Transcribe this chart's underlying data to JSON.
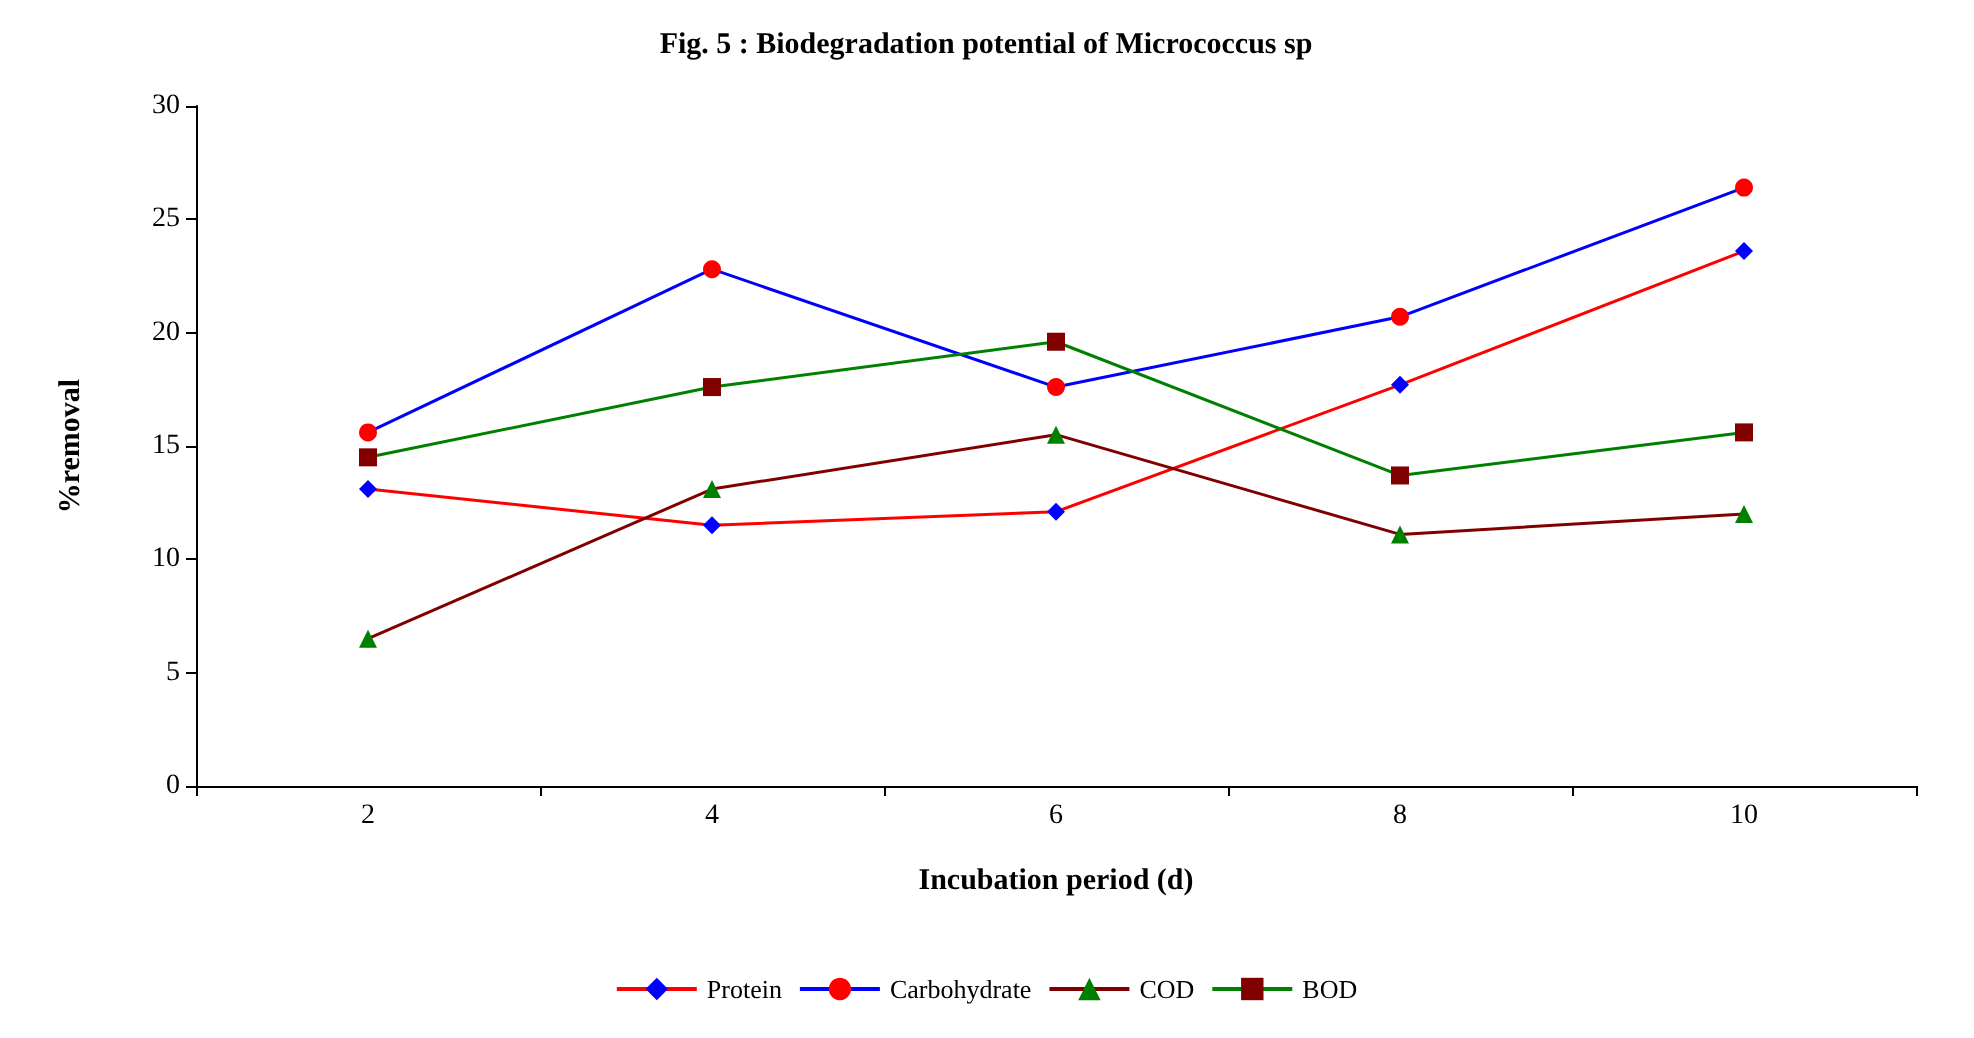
{
  "chart_data": {
    "type": "line",
    "title": "Fig. 5 : Biodegradation potential of Micrococcus sp",
    "xlabel": "Incubation period (d)",
    "ylabel": "%removal",
    "categories": [
      "2",
      "4",
      "6",
      "8",
      "10"
    ],
    "ylim": [
      0,
      30
    ],
    "yticks": [
      0,
      5,
      10,
      15,
      20,
      25,
      30
    ],
    "grid": false,
    "legend": "bottom",
    "series": [
      {
        "name": "Protein",
        "color": "#ff0000",
        "colors": [
          "#0000ff",
          "#0000ff",
          "#0000ff",
          "#0000ff",
          "#0000ff"
        ],
        "marker": "diamond",
        "values": [
          13.1,
          11.5,
          12.1,
          17.7,
          23.6
        ]
      },
      {
        "name": "Carbohydrate",
        "color": "#0000ff",
        "colors": [
          "#ff0000",
          "#ff0000",
          "#ff0000",
          "#ff0000",
          "#ff0000"
        ],
        "marker": "circle",
        "values": [
          15.6,
          22.8,
          17.6,
          20.7,
          26.4
        ]
      },
      {
        "name": "COD",
        "color": "#800000",
        "colors": [
          "#008000",
          "#008000",
          "#008000",
          "#008000",
          "#008000"
        ],
        "marker": "triangle",
        "values": [
          6.5,
          13.1,
          15.5,
          11.1,
          12.0
        ]
      },
      {
        "name": "BOD",
        "color": "#008000",
        "colors": [
          "#800000",
          "#800000",
          "#800000",
          "#800000",
          "#800000"
        ],
        "marker": "square",
        "values": [
          14.5,
          17.6,
          19.6,
          13.7,
          15.6
        ]
      }
    ]
  }
}
